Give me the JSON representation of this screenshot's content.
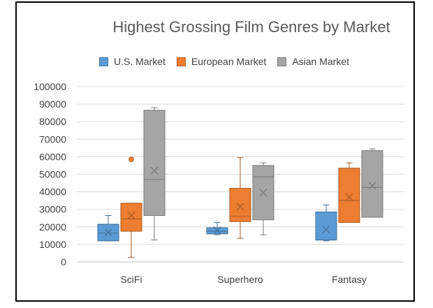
{
  "chart_data": {
    "type": "box",
    "title": "Highest Grossing Film Genres by Market",
    "xlabel": "",
    "ylabel": "",
    "ylim": [
      0,
      100000
    ],
    "yticks": [
      0,
      10000,
      20000,
      30000,
      40000,
      50000,
      60000,
      70000,
      80000,
      90000,
      100000
    ],
    "categories": [
      "SciFi",
      "Superhero",
      "Fantasy"
    ],
    "legend_position": "top",
    "grid": true,
    "series": [
      {
        "name": "U.S. Market",
        "color": "#5B9BD5",
        "boxes": [
          {
            "min": 12000,
            "q1": 12000,
            "median": 16500,
            "q3": 21500,
            "max": 26500,
            "mean": 16800,
            "outliers": []
          },
          {
            "min": 15500,
            "q1": 16000,
            "median": 17500,
            "q3": 19500,
            "max": 22500,
            "mean": 18000,
            "outliers": []
          },
          {
            "min": 12000,
            "q1": 12500,
            "median": 12500,
            "q3": 28500,
            "max": 32500,
            "mean": 18500,
            "outliers": []
          }
        ]
      },
      {
        "name": "European Market",
        "color": "#ED7D31",
        "boxes": [
          {
            "min": 2500,
            "q1": 17500,
            "median": 24500,
            "q3": 33500,
            "max": 33500,
            "mean": 26500,
            "outliers": [
              58500
            ]
          },
          {
            "min": 13500,
            "q1": 23000,
            "median": 26000,
            "q3": 42000,
            "max": 59500,
            "mean": 31500,
            "outliers": []
          },
          {
            "min": 22500,
            "q1": 22500,
            "median": 35000,
            "q3": 53500,
            "max": 56500,
            "mean": 37000,
            "outliers": []
          }
        ]
      },
      {
        "name": "Asian Market",
        "color": "#A5A5A5",
        "boxes": [
          {
            "min": 12500,
            "q1": 26500,
            "median": 47000,
            "q3": 86500,
            "max": 88000,
            "mean": 52000,
            "outliers": []
          },
          {
            "min": 15500,
            "q1": 24000,
            "median": 48500,
            "q3": 55000,
            "max": 56500,
            "mean": 39500,
            "outliers": []
          },
          {
            "min": 25500,
            "q1": 25500,
            "median": 42500,
            "q3": 63500,
            "max": 64500,
            "mean": 43500,
            "outliers": []
          }
        ]
      }
    ]
  }
}
